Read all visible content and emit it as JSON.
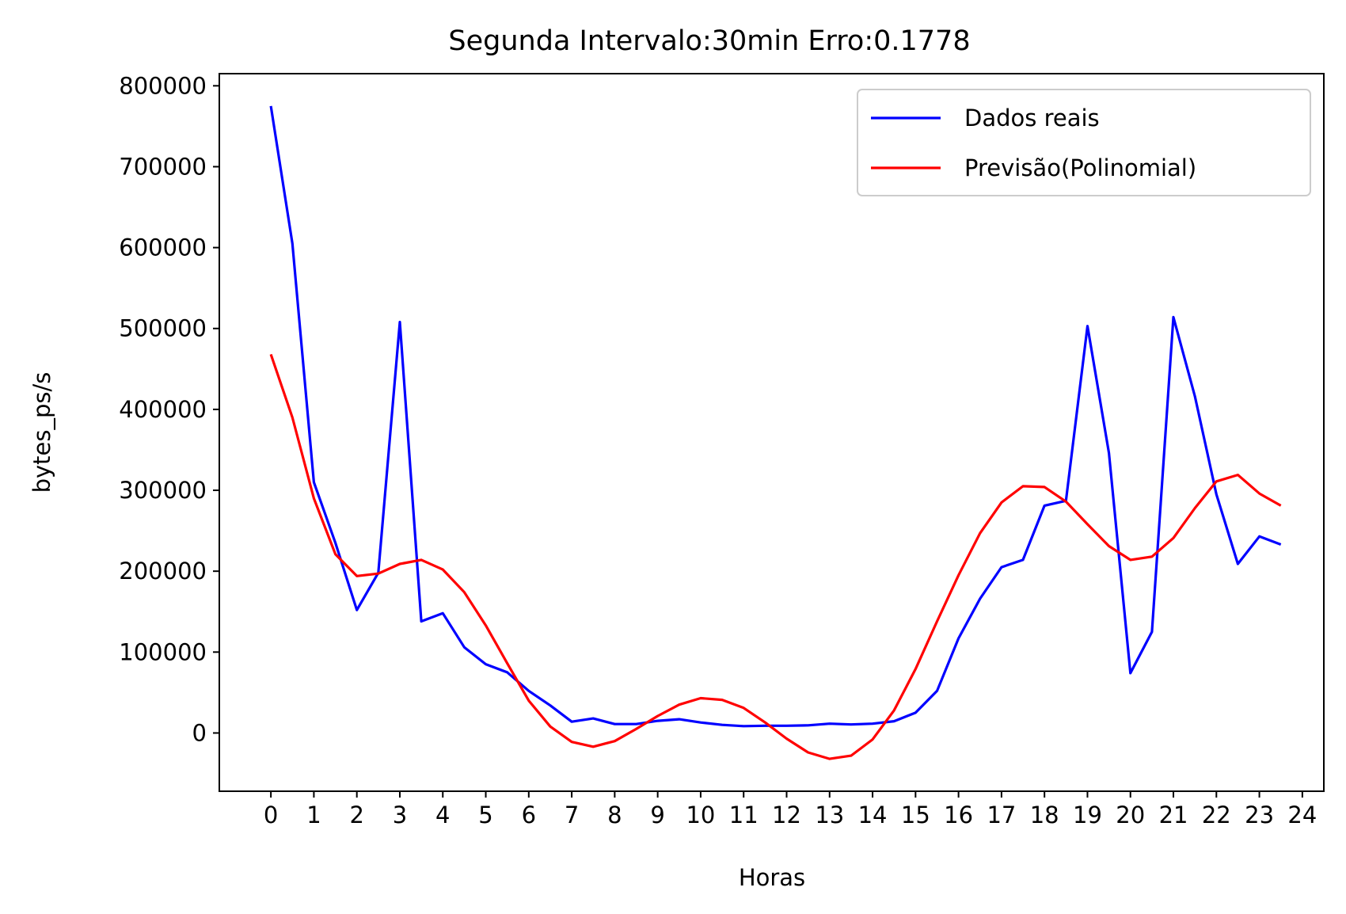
{
  "chart_data": {
    "type": "line",
    "title": "Segunda Intervalo:30min Erro:0.1778",
    "xlabel": "Horas",
    "ylabel": "bytes_ps/s",
    "xlim": [
      -1.2,
      24.5
    ],
    "ylim": [
      -72000,
      815000
    ],
    "xticks": [
      0,
      1,
      2,
      3,
      4,
      5,
      6,
      7,
      8,
      9,
      10,
      11,
      12,
      13,
      14,
      15,
      16,
      17,
      18,
      19,
      20,
      21,
      22,
      23,
      24
    ],
    "yticks": [
      0,
      100000,
      200000,
      300000,
      400000,
      500000,
      600000,
      700000,
      800000
    ],
    "grid": false,
    "legend_position": "top-right",
    "x": [
      0,
      0.5,
      1,
      1.5,
      2,
      2.5,
      3,
      3.5,
      4,
      4.5,
      5,
      5.5,
      6,
      6.5,
      7,
      7.5,
      8,
      8.5,
      9,
      9.5,
      10,
      10.5,
      11,
      11.5,
      12,
      12.5,
      13,
      13.5,
      14,
      14.5,
      15,
      15.5,
      16,
      16.5,
      17,
      17.5,
      18,
      18.5,
      19,
      19.5,
      20,
      20.5,
      21,
      21.5,
      22,
      22.5,
      23,
      23.5
    ],
    "series": [
      {
        "name": "Dados reais",
        "color": "#0000ff",
        "values": [
          775000,
          605000,
          310000,
          235000,
          152000,
          198000,
          508000,
          138000,
          148000,
          106000,
          85000,
          75000,
          52000,
          34000,
          14000,
          18000,
          11000,
          11000,
          15000,
          17000,
          13000,
          10000,
          8500,
          9000,
          9000,
          9500,
          11500,
          10500,
          11500,
          14500,
          25000,
          52000,
          117000,
          166000,
          205000,
          214000,
          281000,
          287000,
          503000,
          346000,
          74000,
          125000,
          514000,
          416000,
          295000,
          209000,
          243000,
          233000
        ]
      },
      {
        "name": "Previsão(Polinomial)",
        "color": "#ff0000",
        "values": [
          468000,
          390000,
          290000,
          221000,
          194000,
          197000,
          209000,
          214000,
          202000,
          174000,
          133000,
          86000,
          40000,
          8000,
          -11000,
          -17000,
          -10000,
          5000,
          21000,
          35000,
          43000,
          41000,
          31000,
          13000,
          -7000,
          -24000,
          -32000,
          -28000,
          -8000,
          28000,
          79000,
          138000,
          195000,
          247000,
          285000,
          305000,
          304000,
          286000,
          258000,
          231000,
          214000,
          218000,
          241000,
          278000,
          311000,
          319000,
          296000,
          281000
        ]
      }
    ]
  }
}
